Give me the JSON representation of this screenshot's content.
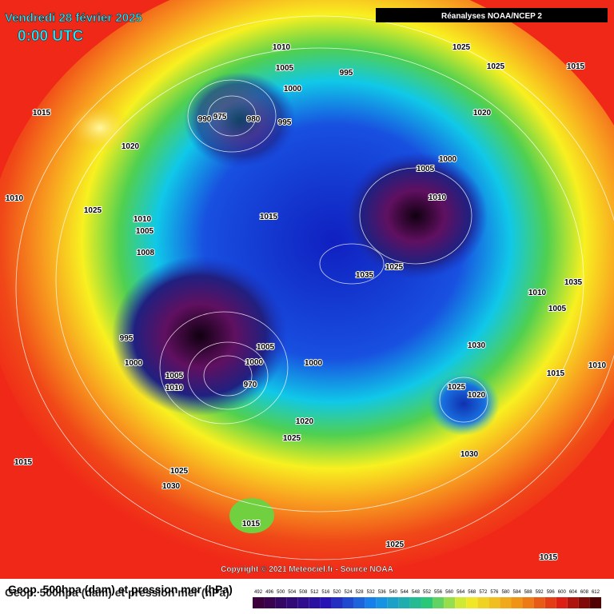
{
  "header": {
    "title": "Vendredi 28 février 2025",
    "time": "0:00 UTC",
    "source_badge": "Réanalyses NOAA/NCEP 2"
  },
  "isobar_labels": [
    "1010",
    "1005",
    "1000",
    "995",
    "1025",
    "1025",
    "1015",
    "1015",
    "990",
    "975",
    "980",
    "995",
    "1020",
    "1020",
    "1000",
    "1005",
    "1010",
    "1010",
    "1025",
    "1015",
    "1010",
    "1005",
    "1008",
    "1035",
    "1025",
    "1035",
    "1010",
    "1005",
    "995",
    "1030",
    "1005",
    "1000",
    "1000",
    "1000",
    "1005",
    "1015",
    "1010",
    "1010",
    "970",
    "1025",
    "1020",
    "1020",
    "1025",
    "1030",
    "1015",
    "1025",
    "1030",
    "1015",
    "1025",
    "1015"
  ],
  "footer": {
    "copyright": "Copyright © 2021 Meteociel.fr - Source NOAA",
    "caption_line1": "Geop. 500hpa (dam) et pression mer (hPa)",
    "caption_line2": "Geop. 500hpa (dam) et pression mer (hPa)"
  },
  "scale_labels": [
    492,
    496,
    500,
    504,
    508,
    512,
    516,
    520,
    524,
    528,
    532,
    536,
    540,
    544,
    548,
    552,
    556,
    560,
    564,
    568,
    572,
    576,
    580,
    584,
    588,
    592,
    596,
    600,
    604,
    608,
    612
  ]
}
